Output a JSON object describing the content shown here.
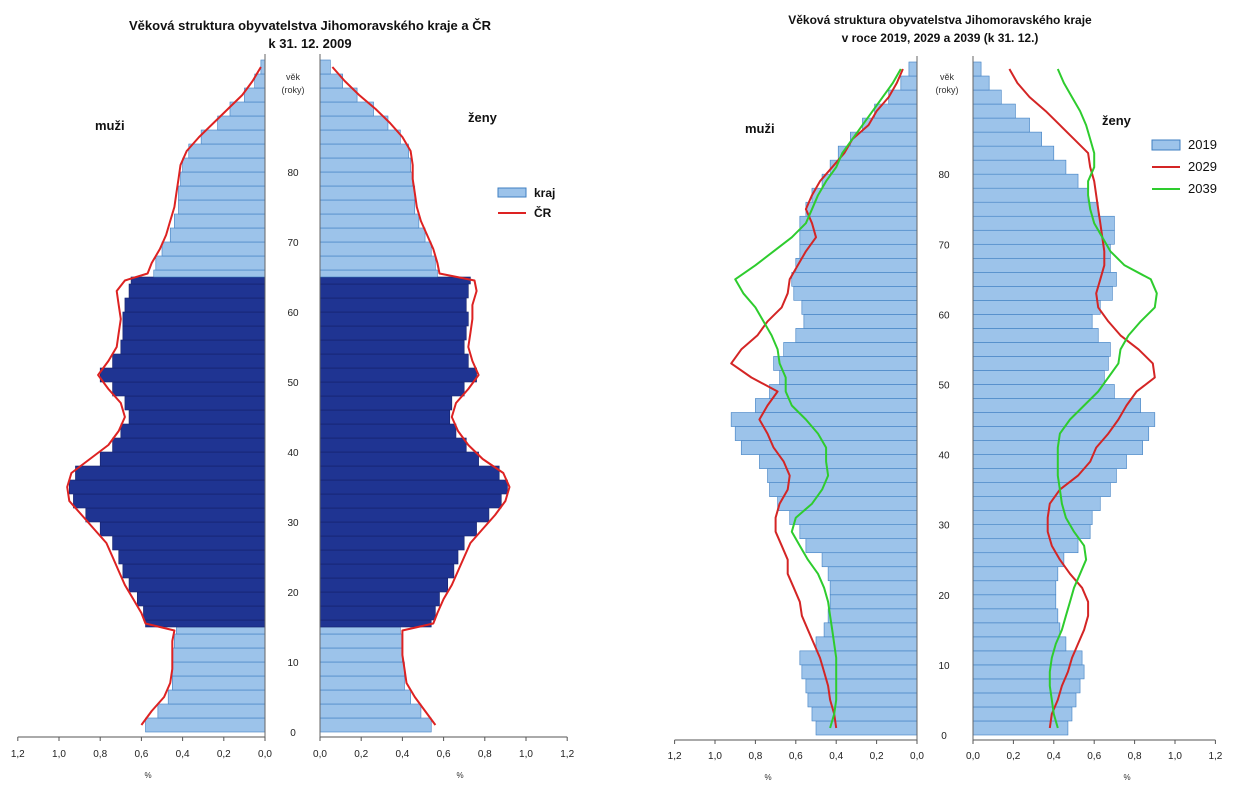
{
  "chart_data": [
    {
      "type": "bar",
      "subtype": "population-pyramid",
      "title": "Věková struktura obyvatelstva Jihomoravského kraje a ČR",
      "subtitle": "k 31. 12. 2009",
      "age_axis_label": "věk",
      "age_axis_unit": "(roky)",
      "left_label": "muži",
      "right_label": "ženy",
      "xlabel": "%",
      "xlim": [
        0,
        1.2
      ],
      "x_ticks": [
        "1,2",
        "1,0",
        "0,8",
        "0,6",
        "0,4",
        "0,2",
        "0,0",
        "0,0",
        "0,2",
        "0,4",
        "0,6",
        "0,8",
        "1,0",
        "1,2"
      ],
      "age_ticks": [
        "0",
        "10",
        "20",
        "30",
        "40",
        "50",
        "60",
        "70",
        "80"
      ],
      "ages": [
        0,
        2,
        4,
        6,
        8,
        10,
        12,
        14,
        15,
        16,
        18,
        20,
        22,
        24,
        26,
        28,
        30,
        32,
        34,
        36,
        38,
        40,
        42,
        44,
        46,
        48,
        50,
        52,
        54,
        56,
        58,
        60,
        62,
        64,
        65,
        66,
        68,
        70,
        72,
        74,
        76,
        78,
        80,
        82,
        84,
        86,
        88,
        90,
        92,
        94
      ],
      "highlight_range": [
        15,
        64
      ],
      "legend": {
        "position": "right",
        "items": [
          "kraj",
          "ČR"
        ]
      },
      "series": [
        {
          "name": "kraj",
          "side": "male",
          "role": "bars",
          "values": [
            0.58,
            0.52,
            0.47,
            0.45,
            0.45,
            0.45,
            0.44,
            0.43,
            0.58,
            0.59,
            0.62,
            0.66,
            0.69,
            0.71,
            0.74,
            0.8,
            0.87,
            0.93,
            0.95,
            0.92,
            0.8,
            0.74,
            0.7,
            0.66,
            0.68,
            0.74,
            0.8,
            0.74,
            0.7,
            0.69,
            0.69,
            0.68,
            0.66,
            0.65,
            0.54,
            0.53,
            0.5,
            0.46,
            0.44,
            0.42,
            0.42,
            0.41,
            0.4,
            0.37,
            0.31,
            0.23,
            0.17,
            0.1,
            0.05,
            0.02
          ]
        },
        {
          "name": "ČR",
          "side": "male",
          "role": "line",
          "values": [
            0.6,
            0.55,
            0.49,
            0.46,
            0.45,
            0.45,
            0.45,
            0.44,
            0.58,
            0.6,
            0.64,
            0.68,
            0.71,
            0.74,
            0.77,
            0.83,
            0.89,
            0.95,
            0.96,
            0.94,
            0.85,
            0.76,
            0.71,
            0.68,
            0.7,
            0.76,
            0.81,
            0.76,
            0.72,
            0.71,
            0.7,
            0.71,
            0.72,
            0.68,
            0.57,
            0.55,
            0.51,
            0.48,
            0.46,
            0.44,
            0.43,
            0.42,
            0.41,
            0.38,
            0.32,
            0.25,
            0.18,
            0.11,
            0.06,
            0.02
          ]
        },
        {
          "name": "kraj",
          "side": "female",
          "role": "bars",
          "values": [
            0.54,
            0.49,
            0.44,
            0.41,
            0.41,
            0.4,
            0.4,
            0.39,
            0.54,
            0.56,
            0.58,
            0.62,
            0.65,
            0.67,
            0.7,
            0.76,
            0.82,
            0.88,
            0.91,
            0.87,
            0.77,
            0.71,
            0.66,
            0.63,
            0.64,
            0.7,
            0.76,
            0.72,
            0.7,
            0.71,
            0.72,
            0.71,
            0.72,
            0.73,
            0.57,
            0.56,
            0.54,
            0.51,
            0.48,
            0.46,
            0.46,
            0.45,
            0.44,
            0.43,
            0.39,
            0.33,
            0.26,
            0.18,
            0.11,
            0.05
          ]
        },
        {
          "name": "ČR",
          "side": "female",
          "role": "line",
          "values": [
            0.56,
            0.51,
            0.46,
            0.42,
            0.41,
            0.4,
            0.4,
            0.4,
            0.55,
            0.57,
            0.6,
            0.64,
            0.67,
            0.7,
            0.73,
            0.79,
            0.85,
            0.9,
            0.92,
            0.89,
            0.79,
            0.72,
            0.67,
            0.64,
            0.66,
            0.72,
            0.77,
            0.74,
            0.72,
            0.73,
            0.74,
            0.74,
            0.76,
            0.75,
            0.58,
            0.57,
            0.55,
            0.52,
            0.49,
            0.47,
            0.46,
            0.45,
            0.45,
            0.44,
            0.4,
            0.34,
            0.27,
            0.19,
            0.12,
            0.06
          ]
        }
      ]
    },
    {
      "type": "bar",
      "subtype": "population-pyramid",
      "title": "Věková struktura obyvatelstva Jihomoravského kraje",
      "subtitle": "v roce 2019, 2029 a 2039 (k 31. 12.)",
      "age_axis_label": "věk",
      "age_axis_unit": "(roky)",
      "left_label": "muži",
      "right_label": "ženy",
      "xlabel": "%",
      "xlim": [
        0,
        1.2
      ],
      "x_ticks": [
        "1,2",
        "1,0",
        "0,8",
        "0,6",
        "0,4",
        "0,2",
        "0,0",
        "0,0",
        "0,2",
        "0,4",
        "0,6",
        "0,8",
        "1,0",
        "1,2"
      ],
      "age_ticks": [
        "0",
        "10",
        "20",
        "30",
        "40",
        "50",
        "60",
        "70",
        "80"
      ],
      "ages": [
        0,
        2,
        4,
        6,
        8,
        10,
        12,
        14,
        16,
        18,
        20,
        22,
        24,
        26,
        28,
        30,
        32,
        34,
        36,
        38,
        40,
        42,
        44,
        46,
        48,
        50,
        52,
        54,
        56,
        58,
        60,
        62,
        64,
        66,
        68,
        70,
        72,
        74,
        76,
        78,
        80,
        82,
        84,
        86,
        88,
        90,
        92,
        94
      ],
      "legend": {
        "position": "right",
        "items": [
          "2019",
          "2029",
          "2039"
        ]
      },
      "series": [
        {
          "name": "2019",
          "side": "male",
          "role": "bars",
          "values": [
            0.5,
            0.52,
            0.54,
            0.55,
            0.57,
            0.58,
            0.5,
            0.46,
            0.44,
            0.43,
            0.43,
            0.44,
            0.47,
            0.55,
            0.58,
            0.63,
            0.69,
            0.73,
            0.74,
            0.78,
            0.87,
            0.9,
            0.92,
            0.8,
            0.73,
            0.68,
            0.71,
            0.66,
            0.6,
            0.56,
            0.57,
            0.61,
            0.62,
            0.6,
            0.58,
            0.58,
            0.58,
            0.55,
            0.52,
            0.47,
            0.43,
            0.39,
            0.33,
            0.27,
            0.21,
            0.14,
            0.08,
            0.04
          ]
        },
        {
          "name": "2029",
          "side": "male",
          "role": "line",
          "values": [
            0.4,
            0.41,
            0.43,
            0.44,
            0.46,
            0.48,
            0.51,
            0.54,
            0.57,
            0.58,
            0.61,
            0.64,
            0.64,
            0.67,
            0.7,
            0.7,
            0.68,
            0.64,
            0.63,
            0.66,
            0.71,
            0.74,
            0.78,
            0.74,
            0.69,
            0.82,
            0.92,
            0.87,
            0.79,
            0.74,
            0.67,
            0.64,
            0.63,
            0.59,
            0.55,
            0.5,
            0.52,
            0.55,
            0.52,
            0.48,
            0.42,
            0.36,
            0.32,
            0.24,
            0.2,
            0.14,
            0.1,
            0.07
          ]
        },
        {
          "name": "2039",
          "side": "male",
          "role": "line",
          "values": [
            0.43,
            0.41,
            0.4,
            0.4,
            0.4,
            0.4,
            0.41,
            0.42,
            0.43,
            0.44,
            0.46,
            0.49,
            0.54,
            0.58,
            0.62,
            0.6,
            0.52,
            0.47,
            0.44,
            0.45,
            0.45,
            0.49,
            0.55,
            0.62,
            0.65,
            0.65,
            0.68,
            0.69,
            0.72,
            0.76,
            0.8,
            0.86,
            0.9,
            0.8,
            0.71,
            0.62,
            0.55,
            0.52,
            0.49,
            0.45,
            0.4,
            0.37,
            0.32,
            0.27,
            0.22,
            0.17,
            0.12,
            0.08
          ]
        },
        {
          "name": "2019",
          "side": "female",
          "role": "bars",
          "values": [
            0.47,
            0.49,
            0.51,
            0.53,
            0.55,
            0.54,
            0.46,
            0.43,
            0.42,
            0.41,
            0.41,
            0.42,
            0.45,
            0.52,
            0.58,
            0.59,
            0.63,
            0.68,
            0.71,
            0.76,
            0.84,
            0.87,
            0.9,
            0.83,
            0.7,
            0.65,
            0.67,
            0.68,
            0.62,
            0.59,
            0.63,
            0.69,
            0.71,
            0.68,
            0.68,
            0.7,
            0.7,
            0.62,
            0.57,
            0.52,
            0.46,
            0.4,
            0.34,
            0.28,
            0.21,
            0.14,
            0.08,
            0.04
          ]
        },
        {
          "name": "2029",
          "side": "female",
          "role": "line",
          "values": [
            0.38,
            0.39,
            0.42,
            0.44,
            0.47,
            0.49,
            0.52,
            0.55,
            0.57,
            0.57,
            0.54,
            0.48,
            0.43,
            0.39,
            0.37,
            0.37,
            0.38,
            0.43,
            0.52,
            0.58,
            0.61,
            0.67,
            0.72,
            0.76,
            0.81,
            0.9,
            0.89,
            0.82,
            0.73,
            0.67,
            0.62,
            0.61,
            0.63,
            0.65,
            0.65,
            0.64,
            0.63,
            0.62,
            0.61,
            0.6,
            0.58,
            0.57,
            0.5,
            0.43,
            0.36,
            0.28,
            0.22,
            0.18
          ]
        },
        {
          "name": "2039",
          "side": "female",
          "role": "line",
          "values": [
            0.42,
            0.4,
            0.39,
            0.38,
            0.38,
            0.39,
            0.41,
            0.44,
            0.46,
            0.48,
            0.5,
            0.53,
            0.56,
            0.55,
            0.5,
            0.46,
            0.44,
            0.43,
            0.42,
            0.42,
            0.42,
            0.43,
            0.48,
            0.55,
            0.62,
            0.67,
            0.72,
            0.73,
            0.77,
            0.83,
            0.9,
            0.91,
            0.88,
            0.75,
            0.68,
            0.64,
            0.6,
            0.58,
            0.57,
            0.57,
            0.6,
            0.6,
            0.58,
            0.56,
            0.53,
            0.49,
            0.45,
            0.42
          ]
        }
      ]
    }
  ],
  "colors": {
    "bar_light": "#9cc3ea",
    "bar_light_stroke": "#3f7fc2",
    "bar_dark": "#1f3492",
    "bar_dark_stroke": "#14206a",
    "cr_line": "#dd2222",
    "line_2029": "#d42525",
    "line_2039": "#2ecc2e"
  }
}
